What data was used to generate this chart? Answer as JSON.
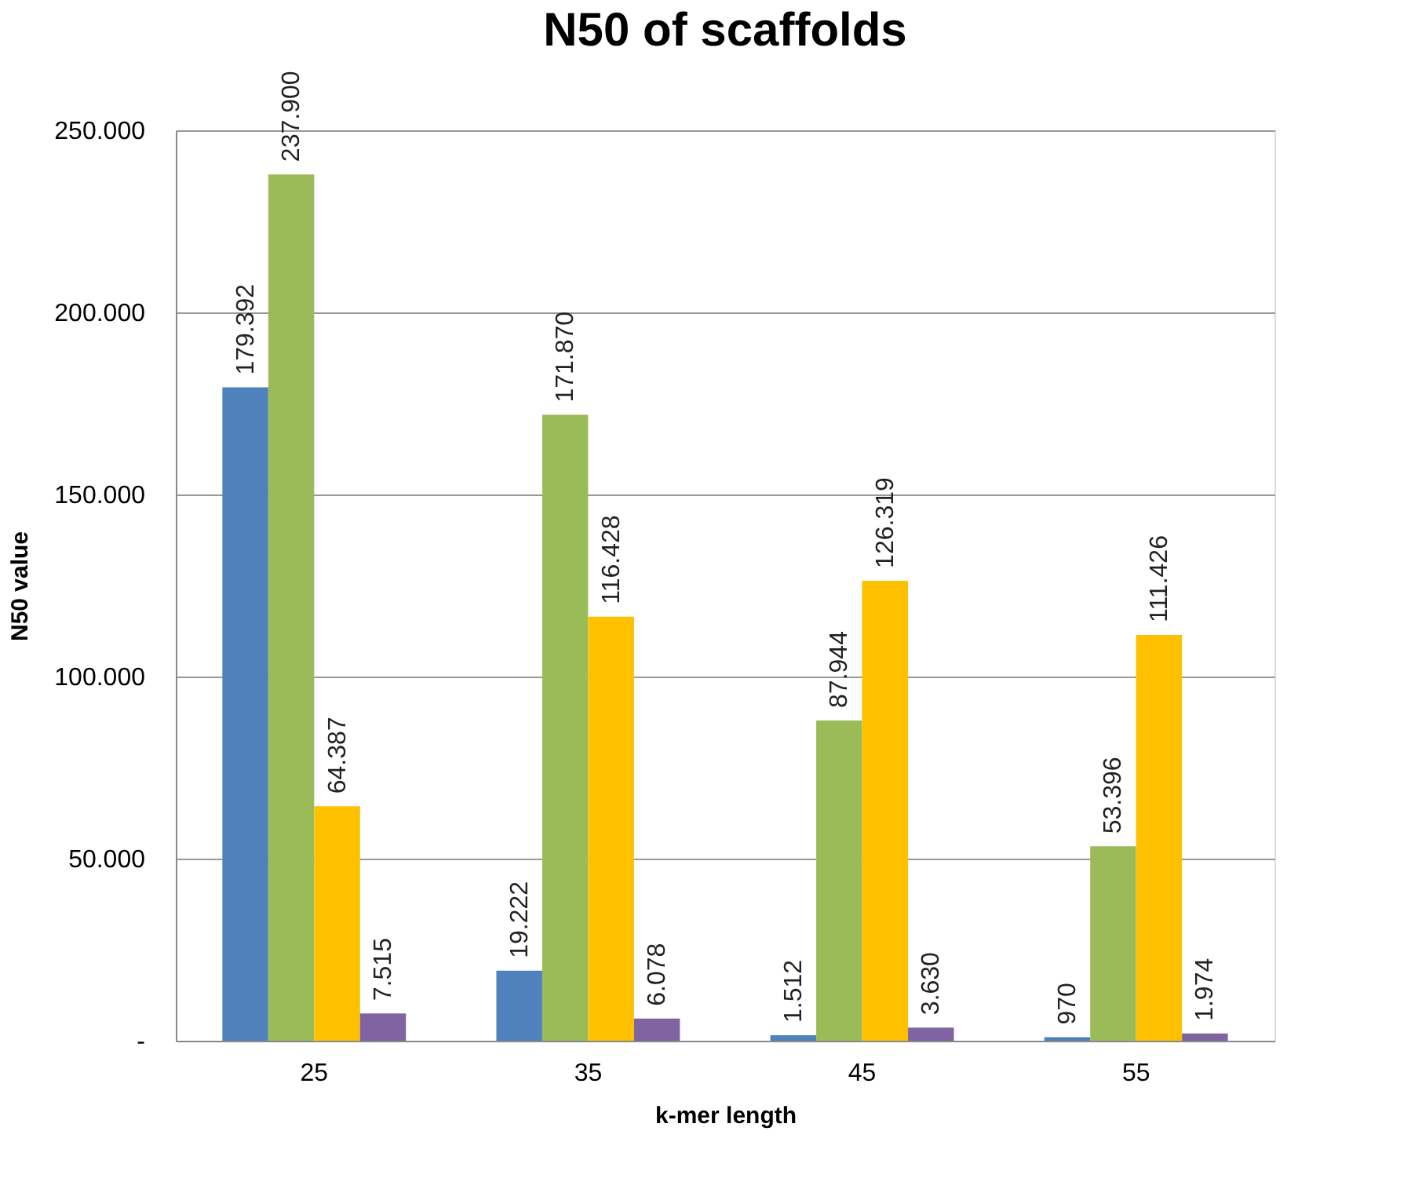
{
  "chart_data": {
    "type": "bar",
    "title": "N50 of scaffolds",
    "xlabel": "k-mer length",
    "ylabel": "N50 value",
    "categories": [
      "25",
      "35",
      "45",
      "55"
    ],
    "series": [
      {
        "color": "#4f81bd",
        "values": [
          179392,
          19222,
          1512,
          970
        ],
        "value_labels": [
          "179.392",
          "19.222",
          "1.512",
          "970"
        ]
      },
      {
        "color": "#9bbb59",
        "values": [
          237900,
          171870,
          87944,
          53396
        ],
        "value_labels": [
          "237.900",
          "171.870",
          "87.944",
          "53.396"
        ]
      },
      {
        "color": "#ffc000",
        "values": [
          64387,
          116428,
          126319,
          111426
        ],
        "value_labels": [
          "64.387",
          "116.428",
          "126.319",
          "111.426"
        ]
      },
      {
        "color": "#8064a2",
        "values": [
          7515,
          6078,
          3630,
          1974
        ],
        "value_labels": [
          "7.515",
          "6.078",
          "3.630",
          "1.974"
        ]
      }
    ],
    "ylim": [
      0,
      250000
    ],
    "yticks": [
      {
        "value": 0,
        "label": "-"
      },
      {
        "value": 50000,
        "label": "50.000"
      },
      {
        "value": 100000,
        "label": "100.000"
      },
      {
        "value": 150000,
        "label": "150.000"
      },
      {
        "value": 200000,
        "label": "200.000"
      },
      {
        "value": 250000,
        "label": "250.000"
      }
    ],
    "grid": "y",
    "legend": false
  }
}
